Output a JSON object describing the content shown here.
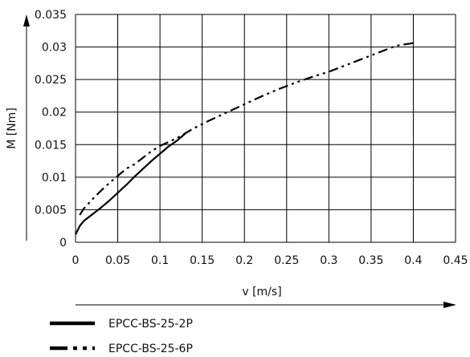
{
  "chart_data": {
    "type": "line",
    "xlabel": "v [m/s]",
    "ylabel": "M [Nm]",
    "xlim": [
      0,
      0.45
    ],
    "ylim": [
      0,
      0.035
    ],
    "x_ticks": [
      "0",
      "0.05",
      "0.1",
      "0.15",
      "0.2",
      "0.25",
      "0.3",
      "0.35",
      "0.4",
      "0.45"
    ],
    "y_ticks": [
      "0",
      "0.005",
      "0.01",
      "0.015",
      "0.02",
      "0.025",
      "0.03",
      "0.035"
    ],
    "grid": true,
    "legend_position": "bottom",
    "series": [
      {
        "name": "EPCC-BS-25-2P",
        "line_style": "solid",
        "x": [
          0,
          0.005,
          0.01,
          0.02,
          0.03,
          0.04,
          0.05,
          0.06,
          0.07,
          0.08,
          0.09,
          0.1,
          0.11,
          0.12,
          0.13
        ],
        "y": [
          0.0012,
          0.0025,
          0.0033,
          0.0043,
          0.0053,
          0.0064,
          0.0076,
          0.0088,
          0.0101,
          0.0113,
          0.0125,
          0.0136,
          0.0147,
          0.0156,
          0.0167
        ]
      },
      {
        "name": "EPCC-BS-25-6P",
        "line_style": "dash-dot-dot",
        "x": [
          0.005,
          0.01,
          0.02,
          0.03,
          0.04,
          0.05,
          0.06,
          0.07,
          0.08,
          0.09,
          0.1,
          0.12,
          0.14,
          0.16,
          0.18,
          0.2,
          0.22,
          0.24,
          0.26,
          0.28,
          0.3,
          0.32,
          0.34,
          0.36,
          0.38,
          0.4
        ],
        "y": [
          0.0042,
          0.0052,
          0.0066,
          0.0079,
          0.0091,
          0.0102,
          0.0113,
          0.012,
          0.013,
          0.014,
          0.0148,
          0.016,
          0.0175,
          0.0188,
          0.02,
          0.0212,
          0.0224,
          0.0235,
          0.0245,
          0.0254,
          0.0262,
          0.0272,
          0.0282,
          0.0292,
          0.0302,
          0.0306
        ]
      }
    ]
  }
}
